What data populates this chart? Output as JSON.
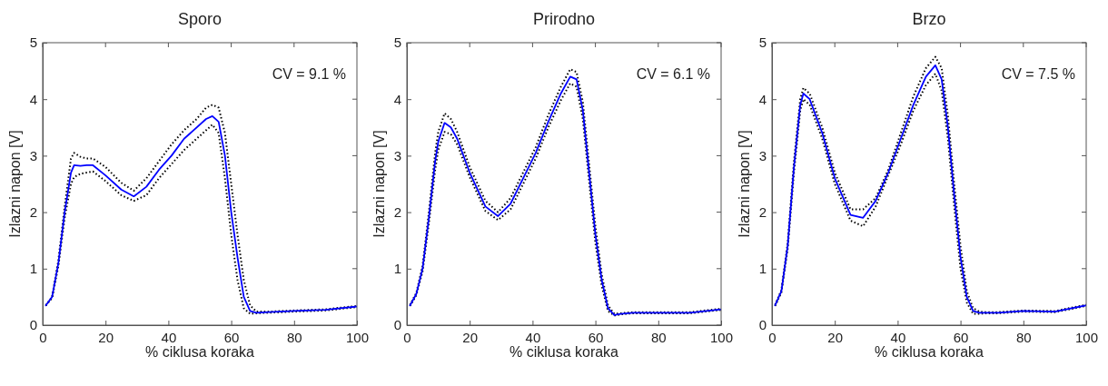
{
  "chart_data": [
    {
      "type": "line",
      "title": "Sporo",
      "xlabel": "% ciklusa koraka",
      "ylabel": "Izlazni napon [V]",
      "annotations": [
        "CV = 9.1 %"
      ],
      "x": [
        1,
        3,
        5,
        7,
        9,
        10,
        12,
        14,
        16,
        20,
        25,
        29,
        33,
        37,
        41,
        45,
        49,
        52,
        54,
        56,
        58,
        60,
        62,
        64,
        66,
        68,
        72,
        80,
        90,
        100
      ],
      "xlim": [
        0,
        100
      ],
      "xticks": [
        0,
        20,
        40,
        60,
        80,
        100
      ],
      "ylim": [
        0,
        5
      ],
      "yticks": [
        0,
        1,
        2,
        3,
        4,
        5
      ],
      "grid": false,
      "marker": "none",
      "series": [
        {
          "color": "#000000",
          "line_style": "dotted",
          "values": [
            0.35,
            0.5,
            1.15,
            2.1,
            2.95,
            3.05,
            2.98,
            2.95,
            2.95,
            2.8,
            2.52,
            2.38,
            2.6,
            2.9,
            3.2,
            3.45,
            3.65,
            3.85,
            3.9,
            3.85,
            3.4,
            2.5,
            1.6,
            0.8,
            0.35,
            0.24,
            0.24,
            0.26,
            0.28,
            0.34
          ]
        },
        {
          "color": "#000000",
          "line_style": "dotted",
          "values": [
            0.35,
            0.48,
            1.05,
            1.9,
            2.5,
            2.62,
            2.68,
            2.7,
            2.72,
            2.55,
            2.3,
            2.2,
            2.3,
            2.6,
            2.85,
            3.1,
            3.3,
            3.45,
            3.55,
            3.4,
            2.6,
            1.6,
            0.8,
            0.3,
            0.2,
            0.21,
            0.22,
            0.24,
            0.26,
            0.32
          ]
        },
        {
          "color": "#0000ff",
          "line_style": "solid",
          "values": [
            0.35,
            0.5,
            1.1,
            2.0,
            2.7,
            2.83,
            2.82,
            2.83,
            2.83,
            2.65,
            2.4,
            2.28,
            2.45,
            2.75,
            3.0,
            3.3,
            3.5,
            3.65,
            3.7,
            3.6,
            3.0,
            2.0,
            1.2,
            0.5,
            0.25,
            0.22,
            0.23,
            0.25,
            0.27,
            0.33
          ]
        }
      ]
    },
    {
      "type": "line",
      "title": "Prirodno",
      "xlabel": "% ciklusa koraka",
      "ylabel": "Izlazni napon [V]",
      "annotations": [
        "CV = 6.1 %"
      ],
      "x": [
        1,
        3,
        5,
        7,
        9,
        10,
        12,
        14,
        16,
        20,
        25,
        29,
        33,
        37,
        41,
        45,
        49,
        52,
        54,
        56,
        58,
        60,
        62,
        64,
        66,
        68,
        72,
        80,
        90,
        100
      ],
      "xlim": [
        0,
        100
      ],
      "xticks": [
        0,
        20,
        40,
        60,
        80,
        100
      ],
      "ylim": [
        0,
        5
      ],
      "yticks": [
        0,
        1,
        2,
        3,
        4,
        5
      ],
      "grid": false,
      "marker": "none",
      "series": [
        {
          "color": "#000000",
          "line_style": "dotted",
          "values": [
            0.36,
            0.57,
            1.05,
            2.0,
            3.05,
            3.42,
            3.75,
            3.65,
            3.42,
            2.8,
            2.2,
            2.0,
            2.25,
            2.7,
            3.15,
            3.72,
            4.22,
            4.53,
            4.48,
            3.95,
            2.85,
            1.75,
            0.9,
            0.35,
            0.2,
            0.21,
            0.23,
            0.23,
            0.23,
            0.29
          ]
        },
        {
          "color": "#000000",
          "line_style": "dotted",
          "values": [
            0.34,
            0.53,
            0.95,
            1.8,
            2.75,
            3.1,
            3.42,
            3.38,
            3.2,
            2.62,
            2.02,
            1.86,
            2.05,
            2.5,
            2.95,
            3.5,
            3.98,
            4.28,
            4.22,
            3.65,
            2.55,
            1.45,
            0.7,
            0.25,
            0.17,
            0.19,
            0.21,
            0.21,
            0.21,
            0.27
          ]
        },
        {
          "color": "#0000ff",
          "line_style": "solid",
          "values": [
            0.35,
            0.55,
            1.0,
            1.9,
            2.9,
            3.25,
            3.58,
            3.5,
            3.3,
            2.7,
            2.1,
            1.93,
            2.15,
            2.6,
            3.05,
            3.6,
            4.1,
            4.4,
            4.35,
            3.8,
            2.7,
            1.6,
            0.8,
            0.3,
            0.18,
            0.2,
            0.22,
            0.22,
            0.22,
            0.28
          ]
        }
      ]
    },
    {
      "type": "line",
      "title": "Brzo",
      "xlabel": "% ciklusa koraka",
      "ylabel": "Izlazni napon [V]",
      "annotations": [
        "CV = 7.5 %"
      ],
      "x": [
        1,
        3,
        5,
        7,
        9,
        10,
        12,
        14,
        16,
        20,
        25,
        29,
        33,
        37,
        41,
        45,
        49,
        52,
        54,
        56,
        58,
        60,
        62,
        64,
        66,
        68,
        72,
        80,
        90,
        100
      ],
      "xlim": [
        0,
        100
      ],
      "xticks": [
        0,
        20,
        40,
        60,
        80,
        100
      ],
      "ylim": [
        0,
        5
      ],
      "yticks": [
        0,
        1,
        2,
        3,
        4,
        5
      ],
      "grid": false,
      "marker": "none",
      "series": [
        {
          "color": "#000000",
          "line_style": "dotted",
          "values": [
            0.36,
            0.62,
            1.45,
            2.9,
            4.0,
            4.2,
            4.1,
            3.8,
            3.5,
            2.7,
            2.05,
            2.05,
            2.25,
            2.75,
            3.4,
            4.05,
            4.55,
            4.75,
            4.55,
            3.7,
            2.5,
            1.4,
            0.6,
            0.3,
            0.24,
            0.23,
            0.23,
            0.26,
            0.25,
            0.36
          ]
        },
        {
          "color": "#000000",
          "line_style": "dotted",
          "values": [
            0.34,
            0.58,
            1.35,
            2.7,
            3.8,
            4.0,
            3.9,
            3.6,
            3.3,
            2.5,
            1.85,
            1.75,
            2.1,
            2.65,
            3.2,
            3.8,
            4.25,
            4.45,
            4.15,
            3.3,
            2.1,
            1.0,
            0.4,
            0.2,
            0.2,
            0.21,
            0.21,
            0.24,
            0.23,
            0.34
          ]
        },
        {
          "color": "#0000ff",
          "line_style": "solid",
          "values": [
            0.35,
            0.6,
            1.4,
            2.8,
            3.9,
            4.1,
            4.0,
            3.7,
            3.4,
            2.6,
            1.95,
            1.9,
            2.2,
            2.7,
            3.3,
            3.9,
            4.4,
            4.6,
            4.35,
            3.5,
            2.3,
            1.2,
            0.5,
            0.25,
            0.22,
            0.22,
            0.22,
            0.25,
            0.24,
            0.35
          ]
        }
      ]
    }
  ]
}
